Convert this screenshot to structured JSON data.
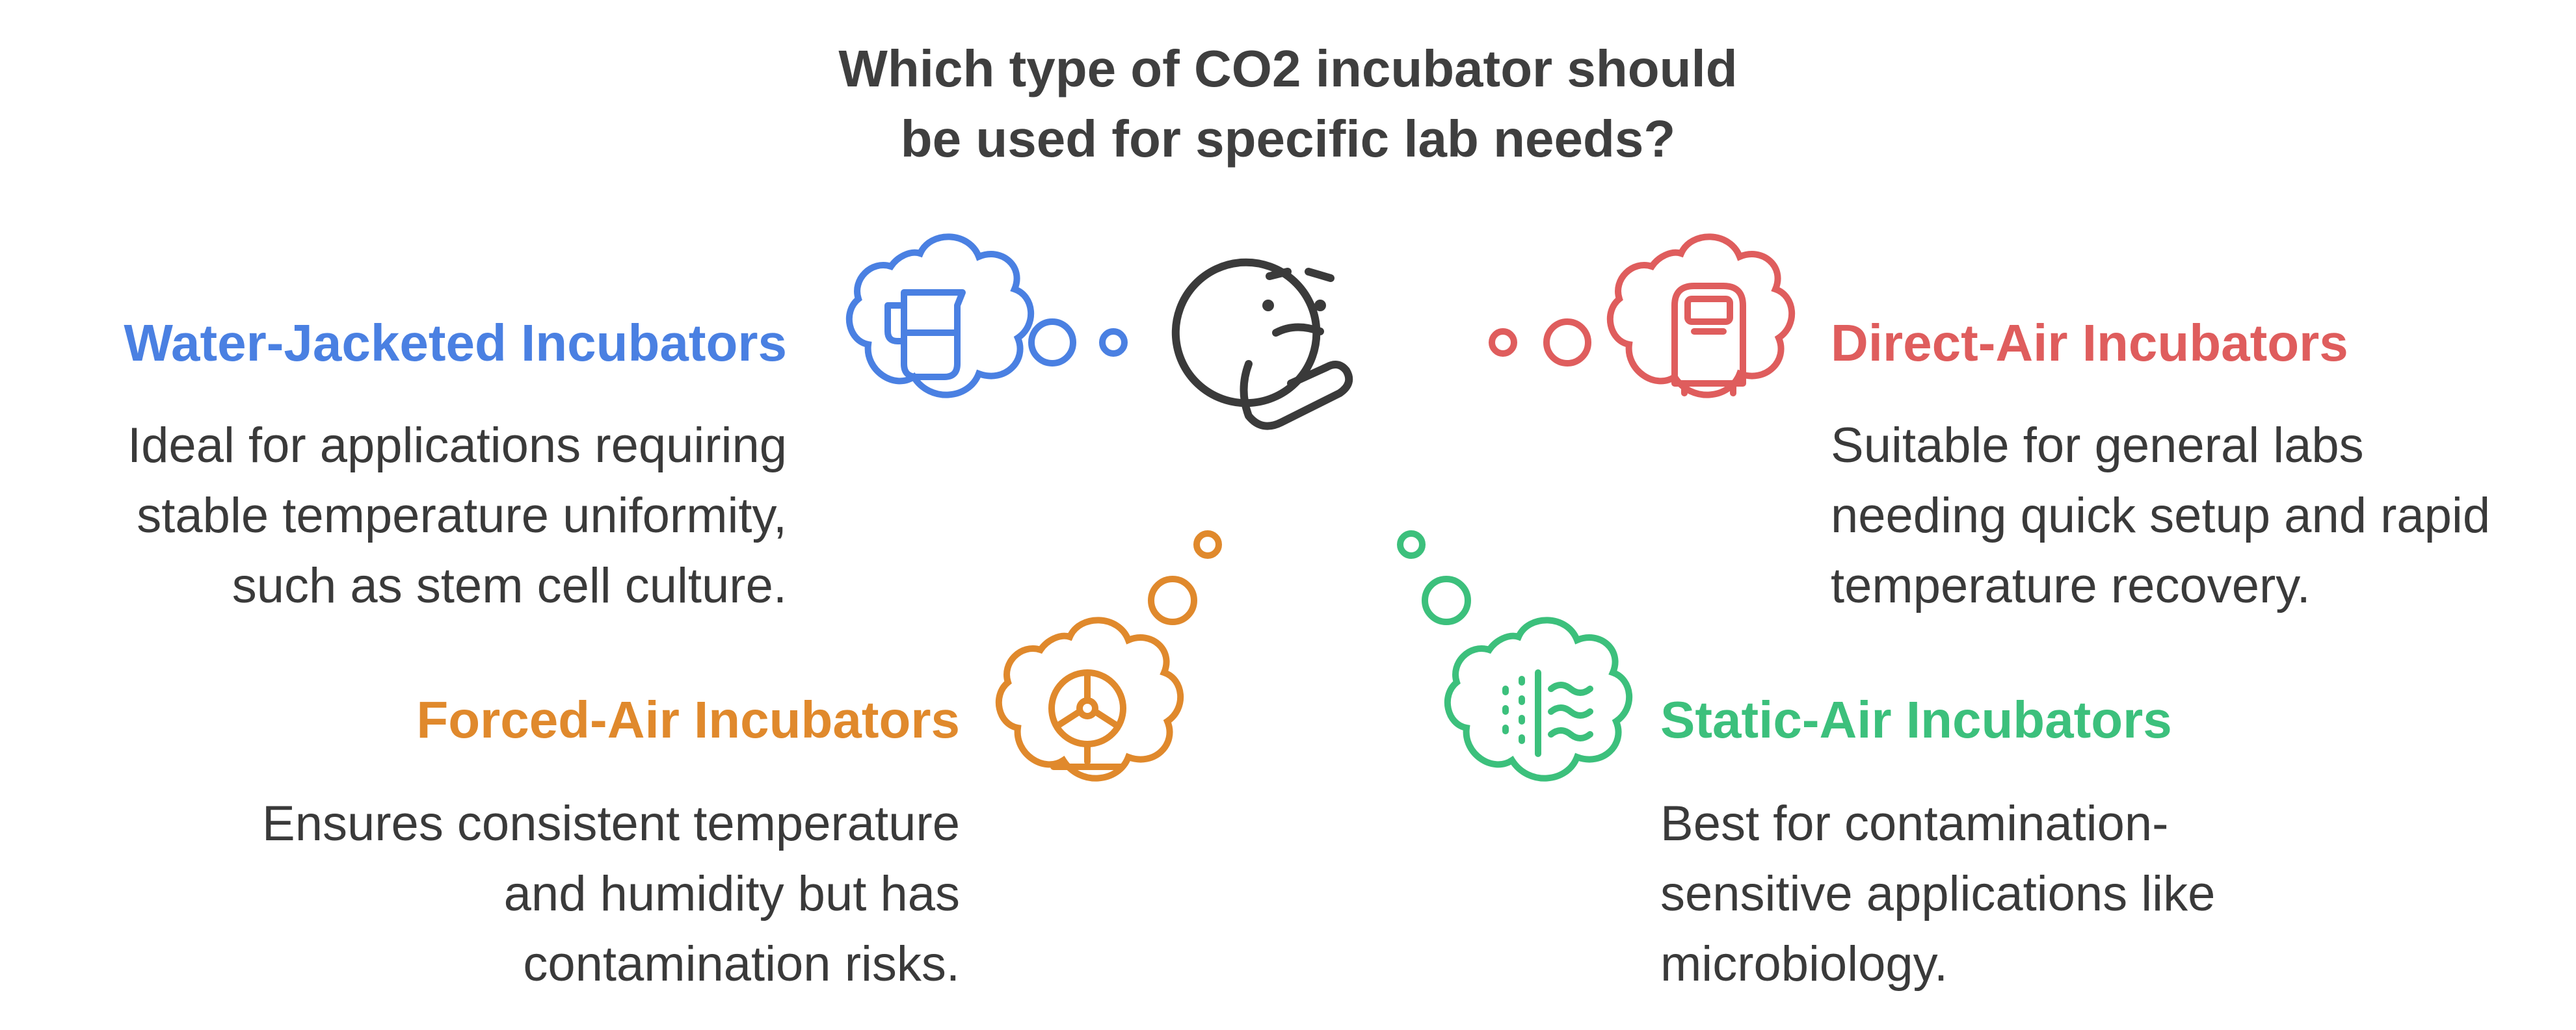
{
  "title": {
    "line1": "Which type of CO2 incubator should",
    "line2": "be used for specific lab needs?"
  },
  "colors": {
    "blue": "#4a80e2",
    "red": "#df5d5d",
    "orange": "#e0892c",
    "green": "#3cc07c",
    "center": "#3a3a3a"
  },
  "options": [
    {
      "key": "water",
      "heading": "Water-Jacketed Incubators",
      "description": "Ideal for applications requiring stable temperature uniformity, such as stem cell culture.",
      "icon": "beaker-icon"
    },
    {
      "key": "direct",
      "heading": "Direct-Air Incubators",
      "description": "Suitable for general labs needing quick setup and rapid temperature recovery.",
      "icon": "air-cabinet-icon"
    },
    {
      "key": "forced",
      "heading": "Forced-Air Incubators",
      "description": "Ensures consistent temperature and humidity but has contamination risks.",
      "icon": "fan-icon"
    },
    {
      "key": "static",
      "heading": "Static-Air Incubators",
      "description": "Best for contamination-sensitive applications like microbiology.",
      "icon": "still-air-icon"
    }
  ],
  "center_icon": "thinking-face-icon"
}
